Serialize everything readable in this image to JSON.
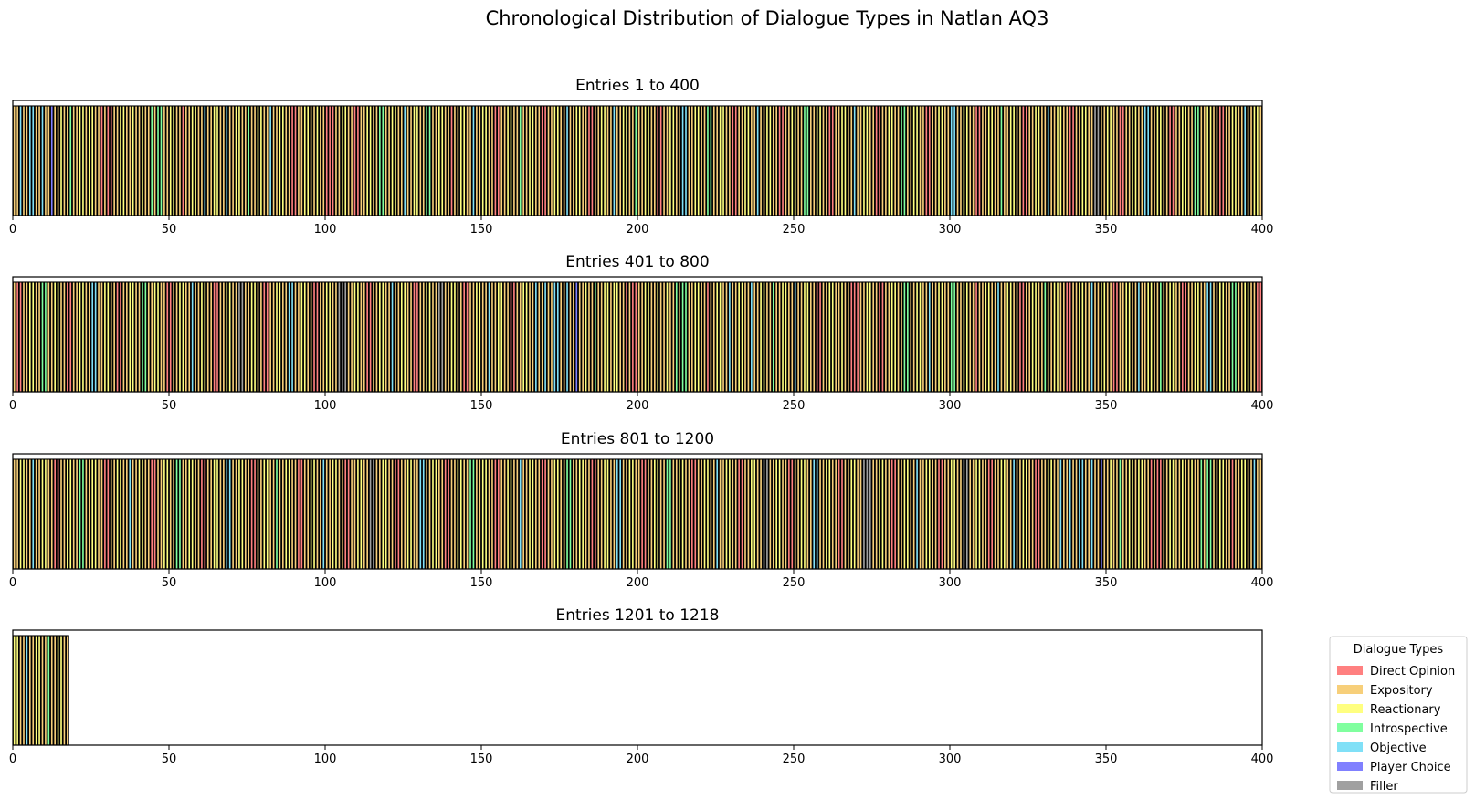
{
  "chart_data": {
    "type": "bar",
    "title": "Chronological Distribution of Dialogue Types in Natlan AQ3",
    "total_entries": 1218,
    "entries_per_panel": 400,
    "xlim": [
      0,
      400
    ],
    "xticks": [
      0,
      50,
      100,
      150,
      200,
      250,
      300,
      350,
      400
    ],
    "panels": [
      {
        "title": "Entries 1 to 400",
        "start": 1,
        "end": 400
      },
      {
        "title": "Entries 401 to 800",
        "start": 401,
        "end": 800
      },
      {
        "title": "Entries 801 to 1200",
        "start": 801,
        "end": 1200
      },
      {
        "title": "Entries 1201 to 1218",
        "start": 1201,
        "end": 1218
      }
    ],
    "categories": [
      {
        "key": "D",
        "name": "Direct Opinion",
        "color": "#ff8080"
      },
      {
        "key": "E",
        "name": "Expository",
        "color": "#f7cf7a"
      },
      {
        "key": "R",
        "name": "Reactionary",
        "color": "#ffff80"
      },
      {
        "key": "I",
        "name": "Introspective",
        "color": "#80ff9f"
      },
      {
        "key": "O",
        "name": "Objective",
        "color": "#80e0f7"
      },
      {
        "key": "P",
        "name": "Player Choice",
        "color": "#8080ff"
      },
      {
        "key": "F",
        "name": "Filler",
        "color": "#a0a0a0"
      }
    ],
    "segments": [
      [
        "E",
        2
      ],
      [
        "O",
        1
      ],
      [
        "E",
        2
      ],
      [
        "O",
        2
      ],
      [
        "E",
        2
      ],
      [
        "O",
        1
      ],
      [
        "E",
        2
      ],
      [
        "P",
        1
      ],
      [
        "E",
        2
      ],
      [
        "R",
        1
      ],
      [
        "E",
        2
      ],
      [
        "I",
        1
      ],
      [
        "E",
        2
      ],
      [
        "R",
        2
      ],
      [
        "E",
        1
      ],
      [
        "R",
        2
      ],
      [
        "E",
        2
      ],
      [
        "D",
        1
      ],
      [
        "E",
        1
      ],
      [
        "D",
        2
      ],
      [
        "E",
        2
      ],
      [
        "R",
        2
      ],
      [
        "E",
        2
      ],
      [
        "R",
        1
      ],
      [
        "E",
        2
      ],
      [
        "R",
        1
      ],
      [
        "E",
        2
      ],
      [
        "I",
        1
      ],
      [
        "E",
        1
      ],
      [
        "I",
        2
      ],
      [
        "E",
        2
      ],
      [
        "R",
        2
      ],
      [
        "E",
        2
      ],
      [
        "D",
        1
      ],
      [
        "E",
        2
      ],
      [
        "R",
        2
      ],
      [
        "E",
        2
      ],
      [
        "O",
        1
      ],
      [
        "E",
        2
      ],
      [
        "R",
        2
      ],
      [
        "E",
        2
      ],
      [
        "O",
        1
      ],
      [
        "E",
        2
      ],
      [
        "R",
        2
      ],
      [
        "E",
        2
      ],
      [
        "I",
        1
      ],
      [
        "E",
        2
      ],
      [
        "R",
        2
      ],
      [
        "E",
        2
      ],
      [
        "O",
        1
      ],
      [
        "E",
        2
      ],
      [
        "R",
        2
      ],
      [
        "E",
        2
      ],
      [
        "D",
        2
      ],
      [
        "E",
        2
      ],
      [
        "R",
        2
      ],
      [
        "E",
        2
      ],
      [
        "R",
        1
      ],
      [
        "E",
        2
      ],
      [
        "D",
        3
      ],
      [
        "E",
        2
      ],
      [
        "R",
        2
      ],
      [
        "E",
        2
      ],
      [
        "D",
        2
      ],
      [
        "E",
        2
      ],
      [
        "R",
        2
      ],
      [
        "E",
        2
      ],
      [
        "I",
        2
      ],
      [
        "E",
        2
      ],
      [
        "R",
        2
      ],
      [
        "E",
        2
      ],
      [
        "O",
        1
      ],
      [
        "E",
        2
      ],
      [
        "R",
        2
      ],
      [
        "E",
        2
      ],
      [
        "I",
        2
      ],
      [
        "E",
        2
      ],
      [
        "R",
        2
      ],
      [
        "E",
        2
      ],
      [
        "D",
        1
      ],
      [
        "E",
        2
      ],
      [
        "R",
        2
      ],
      [
        "E",
        2
      ],
      [
        "O",
        1
      ],
      [
        "E",
        2
      ],
      [
        "R",
        2
      ],
      [
        "E",
        2
      ],
      [
        "D",
        2
      ],
      [
        "E",
        2
      ],
      [
        "R",
        2
      ],
      [
        "E",
        2
      ],
      [
        "I",
        1
      ],
      [
        "E",
        2
      ],
      [
        "R",
        2
      ],
      [
        "E",
        2
      ],
      [
        "D",
        2
      ],
      [
        "E",
        2
      ],
      [
        "R",
        2
      ],
      [
        "E",
        2
      ],
      [
        "O",
        1
      ],
      [
        "E",
        2
      ],
      [
        "R",
        2
      ],
      [
        "E",
        2
      ],
      [
        "D",
        2
      ],
      [
        "E",
        2
      ],
      [
        "R",
        2
      ],
      [
        "E",
        2
      ],
      [
        "O",
        1
      ],
      [
        "E",
        2
      ],
      [
        "R",
        2
      ],
      [
        "E",
        2
      ],
      [
        "I",
        1
      ],
      [
        "E",
        2
      ],
      [
        "R",
        2
      ],
      [
        "E",
        2
      ],
      [
        "D",
        2
      ],
      [
        "E",
        2
      ],
      [
        "R",
        2
      ],
      [
        "E",
        2
      ],
      [
        "O",
        2
      ],
      [
        "E",
        2
      ],
      [
        "R",
        2
      ],
      [
        "E",
        2
      ],
      [
        "I",
        2
      ],
      [
        "E",
        2
      ],
      [
        "R",
        2
      ],
      [
        "E",
        2
      ],
      [
        "D",
        2
      ],
      [
        "E",
        2
      ],
      [
        "R",
        2
      ],
      [
        "E",
        2
      ],
      [
        "O",
        1
      ],
      [
        "E",
        2
      ],
      [
        "R",
        2
      ],
      [
        "E",
        2
      ],
      [
        "D",
        2
      ],
      [
        "E",
        2
      ],
      [
        "R",
        2
      ],
      [
        "E",
        2
      ],
      [
        "I",
        2
      ],
      [
        "E",
        2
      ],
      [
        "R",
        2
      ],
      [
        "E",
        2
      ],
      [
        "D",
        2
      ],
      [
        "E",
        2
      ],
      [
        "R",
        2
      ],
      [
        "E",
        2
      ],
      [
        "O",
        1
      ],
      [
        "E",
        2
      ],
      [
        "R",
        2
      ],
      [
        "E",
        2
      ],
      [
        "D",
        2
      ],
      [
        "E",
        2
      ],
      [
        "R",
        2
      ],
      [
        "E",
        2
      ],
      [
        "I",
        2
      ],
      [
        "E",
        2
      ],
      [
        "R",
        2
      ],
      [
        "E",
        2
      ],
      [
        "D",
        2
      ],
      [
        "E",
        2
      ],
      [
        "R",
        2
      ],
      [
        "E",
        2
      ],
      [
        "O",
        2
      ],
      [
        "E",
        2
      ],
      [
        "R",
        2
      ],
      [
        "E",
        2
      ],
      [
        "D",
        2
      ],
      [
        "E",
        2
      ],
      [
        "R",
        2
      ],
      [
        "E",
        2
      ],
      [
        "I",
        1
      ],
      [
        "E",
        2
      ],
      [
        "R",
        2
      ],
      [
        "E",
        2
      ],
      [
        "D",
        2
      ],
      [
        "E",
        2
      ],
      [
        "R",
        2
      ],
      [
        "E",
        2
      ],
      [
        "O",
        1
      ],
      [
        "E",
        2
      ],
      [
        "R",
        2
      ],
      [
        "E",
        2
      ],
      [
        "D",
        2
      ],
      [
        "E",
        2
      ],
      [
        "R",
        2
      ],
      [
        "E",
        2
      ],
      [
        "F",
        2
      ],
      [
        "E",
        2
      ],
      [
        "R",
        2
      ],
      [
        "E",
        2
      ],
      [
        "D",
        2
      ],
      [
        "E",
        2
      ],
      [
        "R",
        2
      ],
      [
        "E",
        2
      ],
      [
        "O",
        2
      ],
      [
        "E",
        2
      ],
      [
        "R",
        2
      ],
      [
        "E",
        2
      ],
      [
        "D",
        2
      ],
      [
        "E",
        2
      ],
      [
        "R",
        2
      ],
      [
        "E",
        2
      ],
      [
        "I",
        2
      ],
      [
        "E",
        2
      ],
      [
        "R",
        2
      ],
      [
        "E",
        2
      ],
      [
        "D",
        2
      ],
      [
        "E",
        2
      ],
      [
        "R",
        2
      ],
      [
        "E",
        2
      ],
      [
        "O",
        1
      ],
      [
        "E",
        2
      ],
      [
        "R",
        2
      ],
      [
        "E",
        2
      ],
      [
        "D",
        2
      ],
      [
        "E",
        2
      ],
      [
        "R",
        2
      ],
      [
        "E",
        2
      ],
      [
        "I",
        2
      ],
      [
        "E",
        2
      ],
      [
        "R",
        2
      ],
      [
        "E",
        2
      ],
      [
        "D",
        2
      ],
      [
        "E",
        2
      ],
      [
        "R",
        2
      ],
      [
        "E",
        2
      ],
      [
        "O",
        2
      ],
      [
        "E",
        2
      ],
      [
        "R",
        2
      ],
      [
        "E",
        2
      ],
      [
        "D",
        2
      ],
      [
        "E",
        2
      ],
      [
        "R",
        2
      ],
      [
        "E",
        2
      ],
      [
        "I",
        2
      ],
      [
        "E",
        2
      ],
      [
        "R",
        2
      ],
      [
        "E",
        2
      ],
      [
        "D",
        2
      ],
      [
        "E",
        2
      ],
      [
        "R",
        2
      ],
      [
        "E",
        2
      ],
      [
        "O",
        1
      ],
      [
        "E",
        2
      ],
      [
        "R",
        2
      ],
      [
        "E",
        2
      ],
      [
        "D",
        2
      ],
      [
        "E",
        2
      ],
      [
        "R",
        2
      ],
      [
        "E",
        2
      ],
      [
        "F",
        2
      ],
      [
        "E",
        2
      ],
      [
        "R",
        2
      ],
      [
        "E",
        2
      ],
      [
        "D",
        2
      ],
      [
        "E",
        2
      ],
      [
        "R",
        2
      ],
      [
        "E",
        2
      ],
      [
        "O",
        2
      ],
      [
        "E",
        2
      ],
      [
        "R",
        2
      ],
      [
        "E",
        2
      ],
      [
        "D",
        2
      ],
      [
        "E",
        2
      ],
      [
        "R",
        2
      ],
      [
        "E",
        2
      ],
      [
        "F",
        3
      ],
      [
        "E",
        2
      ],
      [
        "R",
        2
      ],
      [
        "E",
        2
      ],
      [
        "D",
        2
      ],
      [
        "E",
        2
      ],
      [
        "R",
        2
      ],
      [
        "E",
        2
      ],
      [
        "O",
        1
      ],
      [
        "E",
        2
      ],
      [
        "R",
        2
      ],
      [
        "E",
        2
      ],
      [
        "D",
        2
      ],
      [
        "E",
        2
      ],
      [
        "R",
        2
      ],
      [
        "E",
        2
      ],
      [
        "F",
        2
      ],
      [
        "E",
        2
      ],
      [
        "R",
        2
      ],
      [
        "E",
        2
      ],
      [
        "D",
        2
      ],
      [
        "E",
        2
      ],
      [
        "R",
        2
      ],
      [
        "E",
        2
      ],
      [
        "O",
        1
      ],
      [
        "E",
        2
      ],
      [
        "R",
        2
      ],
      [
        "E",
        2
      ],
      [
        "D",
        2
      ],
      [
        "E",
        2
      ],
      [
        "R",
        2
      ],
      [
        "E",
        2
      ],
      [
        "O",
        1
      ]
    ]
  }
}
